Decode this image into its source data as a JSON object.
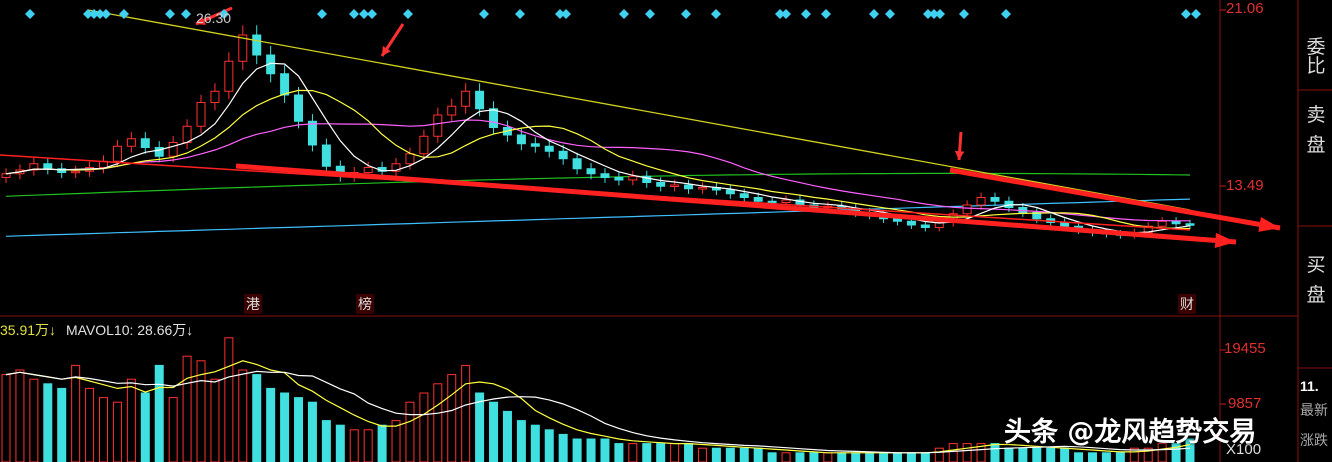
{
  "chart_data": {
    "type": "candlestick",
    "price_axis_ticks": [
      "21.06",
      "13.49"
    ],
    "volume_axis_ticks": [
      "19455",
      "9857"
    ],
    "volume_unit": "X100",
    "high_annotation": "26.30",
    "volume_legend": {
      "vol": "35.91万↓",
      "mavol10": "MAVOL10: 28.66万↓"
    },
    "event_markers": [
      "港",
      "榜",
      "财"
    ],
    "colors": {
      "up": "#ff3030",
      "down": "#40e0e0",
      "ma5": "#ffffff",
      "ma10": "#ffff40",
      "ma20": "#ff60ff",
      "ma60": "#20c020",
      "ma120": "#40c0ff",
      "trendline_upper": "#d0d020",
      "trendline_lower": "#ff2020"
    },
    "close_series": [
      14.8,
      15.1,
      15.6,
      15.2,
      14.9,
      15.0,
      15.3,
      15.8,
      17.0,
      17.6,
      16.9,
      16.2,
      17.3,
      18.6,
      20.5,
      21.4,
      23.8,
      25.9,
      24.3,
      22.8,
      21.1,
      19.0,
      17.1,
      15.4,
      14.6,
      14.9,
      15.3,
      15.0,
      15.6,
      16.4,
      17.8,
      19.5,
      20.2,
      21.4,
      20.0,
      18.5,
      17.9,
      17.2,
      17.0,
      16.6,
      16.0,
      15.2,
      14.8,
      14.5,
      14.3,
      14.6,
      14.1,
      13.8,
      13.9,
      13.6,
      13.7,
      13.5,
      13.2,
      12.9,
      12.6,
      12.5,
      12.7,
      12.3,
      12.1,
      12.2,
      12.0,
      11.7,
      11.5,
      11.2,
      11.0,
      10.7,
      10.5,
      10.9,
      11.6,
      12.3,
      12.9,
      12.6,
      12.1,
      11.7,
      11.2,
      10.9,
      10.6,
      10.3,
      10.1,
      10.0,
      9.9,
      10.1,
      10.6,
      11.0,
      10.8,
      10.7
    ],
    "volume_series": [
      19,
      20,
      18,
      17,
      16,
      21,
      16,
      14,
      13,
      18,
      15,
      21,
      14,
      23,
      22,
      18,
      27,
      20,
      19,
      16,
      15,
      14,
      13,
      9,
      8,
      7,
      7,
      8,
      9,
      13,
      15,
      17,
      19,
      21,
      15,
      13,
      11,
      9,
      8,
      7,
      6,
      5,
      5,
      5,
      4,
      4,
      4,
      4,
      4,
      4,
      3,
      3,
      3,
      3,
      3,
      2,
      2,
      2,
      2,
      2,
      2,
      2,
      2,
      2,
      2,
      2,
      2,
      3,
      4,
      4,
      4,
      4,
      3,
      3,
      3,
      3,
      3,
      2,
      2,
      2,
      2,
      3,
      3,
      4,
      4,
      5
    ]
  },
  "side_panel": {
    "ratio": "委比",
    "sell": "卖盘",
    "buy": "买盘",
    "last_price_fragment": "11.",
    "latest_fragment": "最新",
    "change_fragment": "涨跌"
  },
  "watermark": "头条 @龙风趋势交易"
}
